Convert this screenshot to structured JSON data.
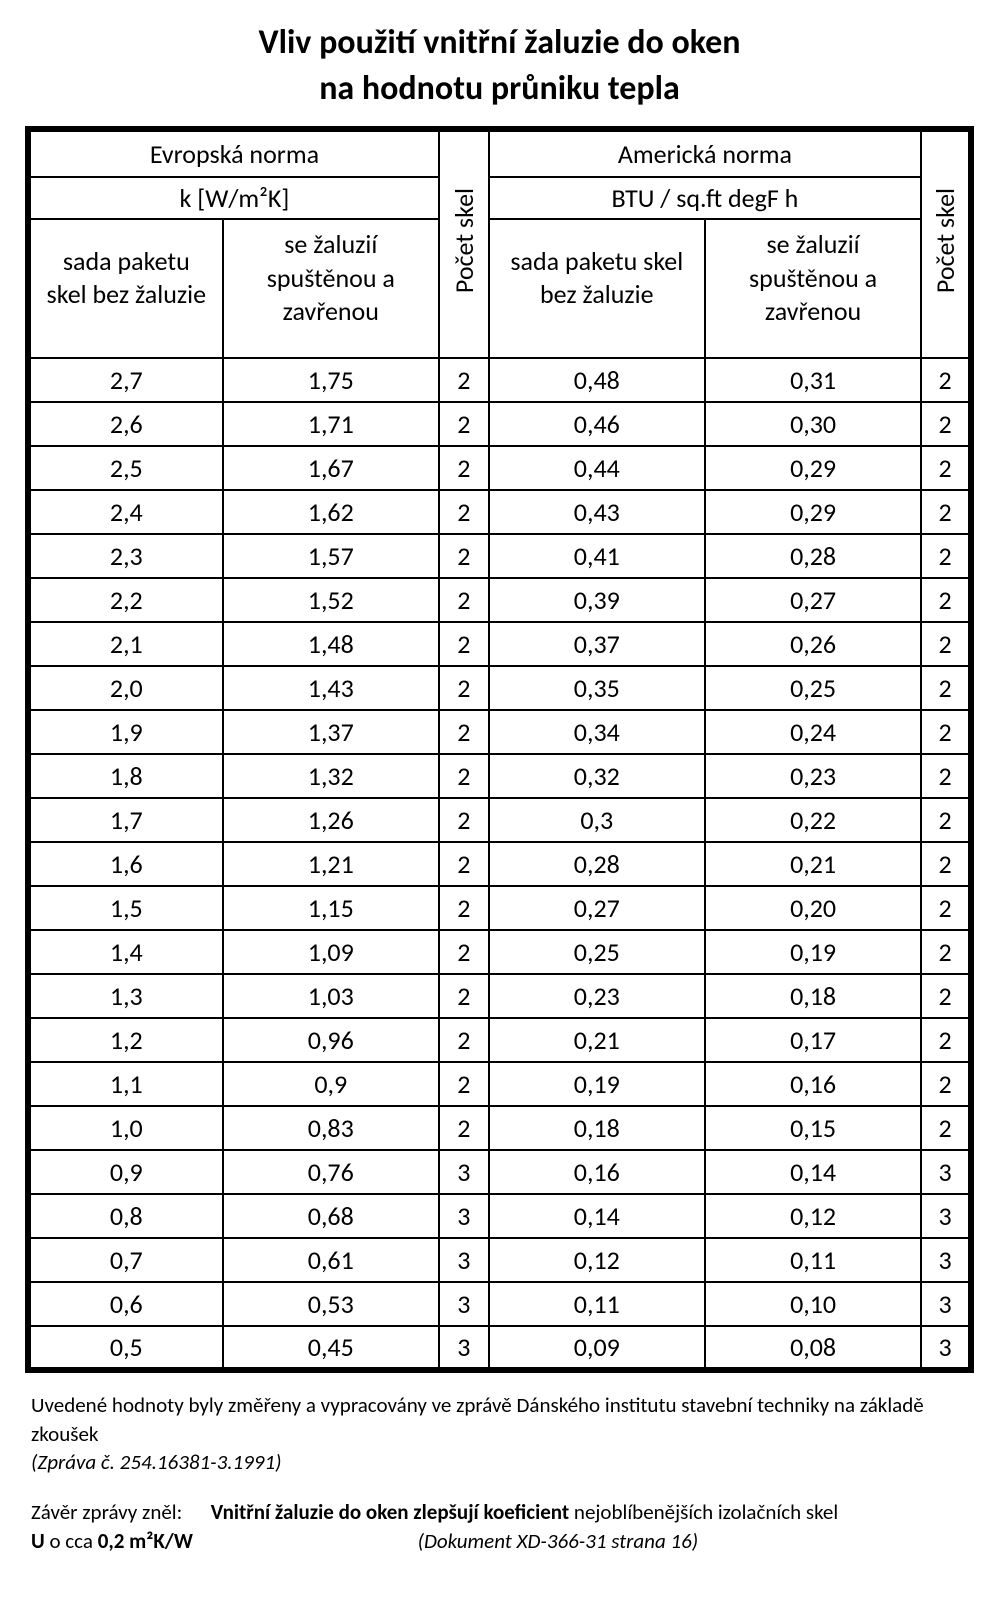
{
  "title_line1": "Vliv použití vnitřní žaluzie do oken",
  "title_line2": "na hodnotu průniku tepla",
  "headers": {
    "eu_norm": "Evropská norma",
    "us_norm": "Americká norma",
    "eu_unit": "k [W/m²K]",
    "us_unit": "BTU / sq.ft degF h",
    "col_without": "sada paketu skel bez žaluzie",
    "col_with": "se žaluzií spuštěnou a zavřenou",
    "count": "Počet skel"
  },
  "rows": [
    {
      "eu1": "2,7",
      "eu2": "1,75",
      "n1": "2",
      "us1": "0,48",
      "us2": "0,31",
      "n2": "2"
    },
    {
      "eu1": "2,6",
      "eu2": "1,71",
      "n1": "2",
      "us1": "0,46",
      "us2": "0,30",
      "n2": "2"
    },
    {
      "eu1": "2,5",
      "eu2": "1,67",
      "n1": "2",
      "us1": "0,44",
      "us2": "0,29",
      "n2": "2"
    },
    {
      "eu1": "2,4",
      "eu2": "1,62",
      "n1": "2",
      "us1": "0,43",
      "us2": "0,29",
      "n2": "2"
    },
    {
      "eu1": "2,3",
      "eu2": "1,57",
      "n1": "2",
      "us1": "0,41",
      "us2": "0,28",
      "n2": "2"
    },
    {
      "eu1": "2,2",
      "eu2": "1,52",
      "n1": "2",
      "us1": "0,39",
      "us2": "0,27",
      "n2": "2"
    },
    {
      "eu1": "2,1",
      "eu2": "1,48",
      "n1": "2",
      "us1": "0,37",
      "us2": "0,26",
      "n2": "2"
    },
    {
      "eu1": "2,0",
      "eu2": "1,43",
      "n1": "2",
      "us1": "0,35",
      "us2": "0,25",
      "n2": "2"
    },
    {
      "eu1": "1,9",
      "eu2": "1,37",
      "n1": "2",
      "us1": "0,34",
      "us2": "0,24",
      "n2": "2"
    },
    {
      "eu1": "1,8",
      "eu2": "1,32",
      "n1": "2",
      "us1": "0,32",
      "us2": "0,23",
      "n2": "2"
    },
    {
      "eu1": "1,7",
      "eu2": "1,26",
      "n1": "2",
      "us1": "0,3",
      "us2": "0,22",
      "n2": "2"
    },
    {
      "eu1": "1,6",
      "eu2": "1,21",
      "n1": "2",
      "us1": "0,28",
      "us2": "0,21",
      "n2": "2"
    },
    {
      "eu1": "1,5",
      "eu2": "1,15",
      "n1": "2",
      "us1": "0,27",
      "us2": "0,20",
      "n2": "2"
    },
    {
      "eu1": "1,4",
      "eu2": "1,09",
      "n1": "2",
      "us1": "0,25",
      "us2": "0,19",
      "n2": "2"
    },
    {
      "eu1": "1,3",
      "eu2": "1,03",
      "n1": "2",
      "us1": "0,23",
      "us2": "0,18",
      "n2": "2"
    },
    {
      "eu1": "1,2",
      "eu2": "0,96",
      "n1": "2",
      "us1": "0,21",
      "us2": "0,17",
      "n2": "2"
    },
    {
      "eu1": "1,1",
      "eu2": "0,9",
      "n1": "2",
      "us1": "0,19",
      "us2": "0,16",
      "n2": "2"
    },
    {
      "eu1": "1,0",
      "eu2": "0,83",
      "n1": "2",
      "us1": "0,18",
      "us2": "0,15",
      "n2": "2"
    },
    {
      "eu1": "0,9",
      "eu2": "0,76",
      "n1": "3",
      "us1": "0,16",
      "us2": "0,14",
      "n2": "3"
    },
    {
      "eu1": "0,8",
      "eu2": "0,68",
      "n1": "3",
      "us1": "0,14",
      "us2": "0,12",
      "n2": "3"
    },
    {
      "eu1": "0,7",
      "eu2": "0,61",
      "n1": "3",
      "us1": "0,12",
      "us2": "0,11",
      "n2": "3"
    },
    {
      "eu1": "0,6",
      "eu2": "0,53",
      "n1": "3",
      "us1": "0,11",
      "us2": "0,10",
      "n2": "3"
    },
    {
      "eu1": "0,5",
      "eu2": "0,45",
      "n1": "3",
      "us1": "0,09",
      "us2": "0,08",
      "n2": "3"
    }
  ],
  "footer": {
    "note": "Uvedené hodnoty byly změřeny a vypracovány ve zprávě Dánského institutu stavební techniky na základě zkoušek",
    "ref": "(Zpráva č. 254.16381-3.1991)",
    "concl_lead": "Závěr zprávy zněl:",
    "concl_bold": "Vnitřní žaluzie do oken zlepšují koeficient",
    "concl_tail": " nejoblíbenějších izolačních skel",
    "concl_line2_bold": "U",
    "concl_line2_mid": " o cca ",
    "concl_line2_bold2": "0,2 m²K/W",
    "doc": "(Dokument XD-366-31 strana 16)"
  },
  "style": {
    "border_color": "#000000",
    "background": "#ffffff",
    "title_fontsize": 34,
    "cell_fontsize": 26,
    "head_fontsize": 21,
    "footer_fontsize": 21
  }
}
